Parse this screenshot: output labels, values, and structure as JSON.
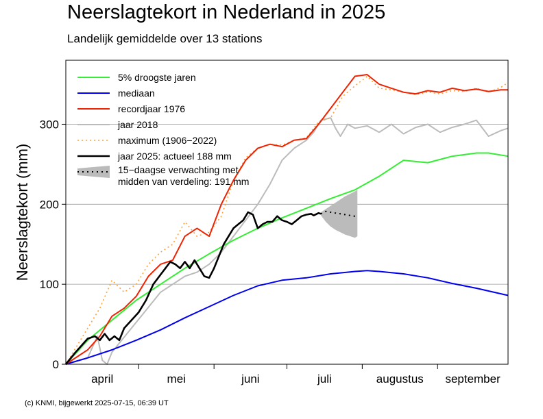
{
  "title": "Neerslagtekort in Nederland in 2025",
  "subtitle": "Landelijk gemiddelde over 13 stations",
  "footer": "(c) KNMI, bijgewerkt 2025-07-15, 06:39 UT",
  "chart_data": {
    "type": "line",
    "ylabel": "Neerslagtekort (mm)",
    "xlabel": "",
    "x_unit": "day of year (1 = 1 januari)",
    "xlim": [
      91,
      273
    ],
    "ylim": [
      0,
      380
    ],
    "yticks": [
      0,
      100,
      200,
      300
    ],
    "months": [
      {
        "label": "april",
        "start": 91,
        "end": 121
      },
      {
        "label": "mei",
        "start": 121,
        "end": 152
      },
      {
        "label": "juni",
        "start": 152,
        "end": 182
      },
      {
        "label": "juli",
        "start": 182,
        "end": 213
      },
      {
        "label": "augustus",
        "start": 213,
        "end": 244
      },
      {
        "label": "september",
        "start": 244,
        "end": 274
      }
    ],
    "grid": {
      "y": true,
      "x": false
    },
    "legend_position": "top-left",
    "series": [
      {
        "name": "5% droogste jaren",
        "color": "#33ee33",
        "style": "solid",
        "x": [
          91,
          100,
          110,
          120,
          130,
          140,
          150,
          160,
          170,
          180,
          190,
          200,
          210,
          220,
          230,
          240,
          250,
          260,
          265,
          273
        ],
        "y": [
          0,
          30,
          55,
          80,
          100,
          120,
          138,
          155,
          170,
          183,
          195,
          207,
          218,
          235,
          255,
          252,
          260,
          264,
          264,
          260
        ]
      },
      {
        "name": "mediaan",
        "color": "#0000ee",
        "style": "solid",
        "x": [
          91,
          100,
          110,
          120,
          130,
          140,
          150,
          160,
          170,
          180,
          190,
          200,
          210,
          215,
          220,
          230,
          240,
          250,
          260,
          273
        ],
        "y": [
          0,
          8,
          18,
          30,
          43,
          58,
          72,
          86,
          98,
          105,
          108,
          113,
          116,
          117,
          116,
          113,
          108,
          101,
          95,
          86
        ]
      },
      {
        "name": "recordjaar 1976",
        "color": "#ee2200",
        "style": "solid",
        "x": [
          91,
          100,
          105,
          110,
          115,
          120,
          125,
          130,
          135,
          140,
          145,
          150,
          155,
          160,
          165,
          170,
          175,
          180,
          185,
          190,
          195,
          200,
          205,
          210,
          215,
          220,
          225,
          230,
          235,
          240,
          245,
          250,
          255,
          260,
          265,
          270,
          273
        ],
        "y": [
          0,
          18,
          35,
          60,
          70,
          85,
          110,
          125,
          130,
          160,
          170,
          160,
          200,
          230,
          255,
          270,
          275,
          272,
          280,
          282,
          300,
          320,
          340,
          360,
          362,
          350,
          345,
          340,
          338,
          342,
          340,
          345,
          342,
          344,
          341,
          343,
          343
        ]
      },
      {
        "name": "jaar 2018",
        "color": "#bbbbbb",
        "style": "solid",
        "x": [
          91,
          100,
          104,
          106,
          108,
          110,
          114,
          118,
          122,
          126,
          130,
          135,
          140,
          145,
          150,
          155,
          160,
          165,
          170,
          175,
          180,
          185,
          190,
          193,
          196,
          200,
          202,
          204,
          207,
          210,
          215,
          220,
          225,
          230,
          235,
          240,
          245,
          250,
          255,
          260,
          265,
          270,
          273
        ],
        "y": [
          0,
          8,
          35,
          5,
          0,
          15,
          30,
          45,
          60,
          75,
          90,
          100,
          110,
          115,
          125,
          140,
          160,
          180,
          200,
          225,
          255,
          270,
          280,
          290,
          305,
          308,
          295,
          285,
          300,
          295,
          298,
          290,
          300,
          288,
          296,
          300,
          290,
          296,
          300,
          305,
          285,
          292,
          295
        ]
      },
      {
        "name": "maximum (1906−2022)",
        "color": "#ffa030",
        "style": "dotted",
        "x": [
          91,
          96,
          100,
          105,
          110,
          115,
          120,
          125,
          130,
          135,
          140,
          145,
          150,
          155,
          160,
          165,
          170,
          175,
          180,
          185,
          190,
          195,
          200,
          205,
          210,
          215,
          220,
          225,
          230,
          235,
          240,
          245,
          250,
          255,
          260,
          265,
          270,
          273
        ],
        "y": [
          0,
          25,
          45,
          70,
          105,
          90,
          100,
          125,
          140,
          150,
          178,
          160,
          165,
          185,
          230,
          258,
          270,
          275,
          274,
          280,
          283,
          303,
          308,
          335,
          348,
          360,
          345,
          343,
          340,
          337,
          340,
          338,
          342,
          341,
          345,
          340,
          346,
          352
        ]
      },
      {
        "name": "jaar 2025: actueel 188 mm",
        "color": "#000000",
        "style": "solid",
        "x": [
          91,
          95,
          100,
          103,
          105,
          107,
          109,
          111,
          113,
          115,
          118,
          121,
          124,
          127,
          130,
          132,
          134,
          136,
          138,
          140,
          142,
          144,
          146,
          148,
          150,
          152,
          154,
          156,
          158,
          160,
          162,
          164,
          166,
          168,
          170,
          172,
          174,
          176,
          178,
          180,
          182,
          184,
          186,
          188,
          190,
          192,
          193,
          195,
          196
        ],
        "y": [
          0,
          15,
          32,
          35,
          30,
          38,
          30,
          35,
          30,
          45,
          55,
          65,
          80,
          100,
          112,
          120,
          128,
          125,
          120,
          128,
          120,
          130,
          120,
          110,
          108,
          120,
          135,
          150,
          160,
          170,
          175,
          180,
          190,
          187,
          170,
          175,
          178,
          178,
          185,
          180,
          178,
          175,
          180,
          185,
          187,
          188,
          186,
          189,
          188
        ]
      }
    ],
    "forecast": {
      "label_line1": "15−daagse verwachting met",
      "label_line2": "midden van verdeling: 191 mm",
      "color": "#bbbbbb",
      "median_color": "#000000",
      "x": [
        196,
        198,
        200,
        202,
        204,
        206,
        208,
        210,
        211
      ],
      "median": [
        188,
        191,
        190,
        189,
        188,
        187,
        186,
        185,
        186
      ],
      "low": [
        186,
        178,
        172,
        168,
        165,
        162,
        160,
        158,
        160
      ],
      "high": [
        190,
        194,
        198,
        202,
        206,
        210,
        213,
        216,
        218
      ]
    }
  }
}
